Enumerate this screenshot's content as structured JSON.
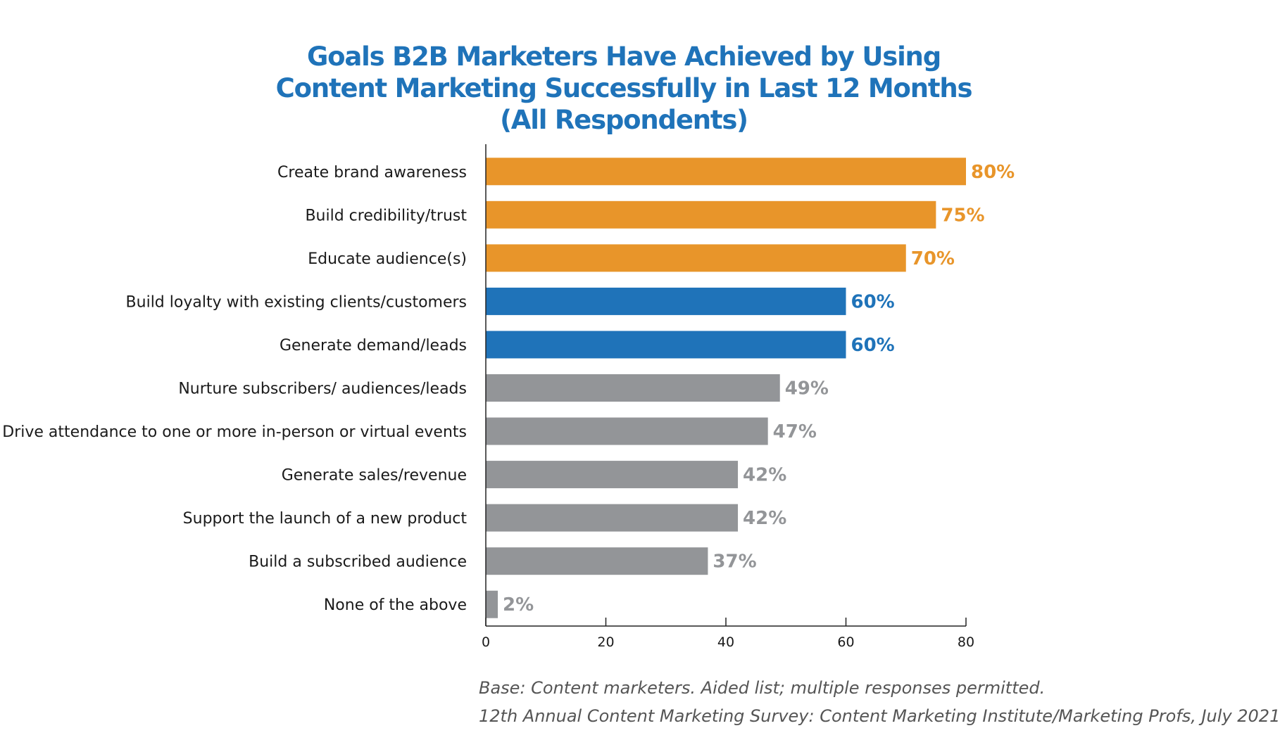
{
  "chart_data": {
    "type": "bar",
    "orientation": "horizontal",
    "title_lines": [
      "Goals B2B Marketers Have Achieved by Using",
      "Content Marketing Successfully in Last 12 Months",
      "(All Respondents)"
    ],
    "categories": [
      "Create brand awareness",
      "Build credibility/trust",
      "Educate audience(s)",
      "Build loyalty with existing clients/customers",
      "Generate demand/leads",
      "Nurture subscribers/ audiences/leads",
      "Drive attendance to one or more in-person or virtual events",
      "Generate sales/revenue",
      "Support the launch of a new product",
      "Build a subscribed audience",
      "None of the above"
    ],
    "values": [
      80,
      75,
      70,
      60,
      60,
      49,
      47,
      42,
      42,
      37,
      2
    ],
    "value_labels": [
      "80%",
      "75%",
      "70%",
      "60%",
      "60%",
      "49%",
      "47%",
      "42%",
      "42%",
      "37%",
      "2%"
    ],
    "bar_colors": [
      "#e8952a",
      "#e8952a",
      "#e8952a",
      "#1f73b9",
      "#1f73b9",
      "#939598",
      "#939598",
      "#939598",
      "#939598",
      "#939598",
      "#939598"
    ],
    "xlim": [
      0,
      80
    ],
    "xticks": [
      0,
      20,
      40,
      60,
      80
    ],
    "xtick_labels": [
      "0",
      "20",
      "40",
      "60",
      "80"
    ],
    "grid": false,
    "legend": "none"
  },
  "footnotes": {
    "base": "Base: Content marketers. Aided list; multiple responses permitted.",
    "source": "12th Annual Content Marketing Survey: Content Marketing Institute/Marketing Profs, July 2021"
  },
  "colors": {
    "title": "#1f73b9",
    "axis": "#222222",
    "category_text": "#1a1a1a",
    "footnote_text": "#555555"
  }
}
